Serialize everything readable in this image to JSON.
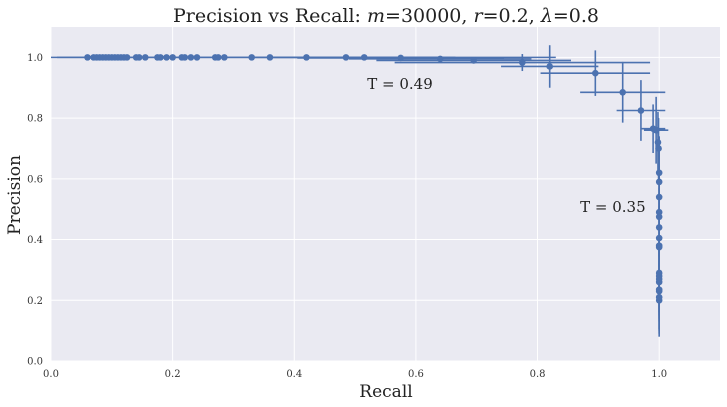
{
  "chart_data": {
    "type": "scatter",
    "title": "Precision vs Recall: m=30000, r=0.2, λ=0.8",
    "title_parts": {
      "prefix": "Precision vs Recall: ",
      "m_sym": "m",
      "m_val": "30000",
      "r_sym": "r",
      "r_val": "0.2",
      "lambda_sym": "λ",
      "lambda_val": "0.8"
    },
    "xlabel": "Recall",
    "ylabel": "Precision",
    "xlim": [
      0,
      1.1
    ],
    "ylim": [
      0,
      1.1
    ],
    "xticks": [
      "0.0",
      "0.2",
      "0.4",
      "0.6",
      "0.8",
      "1.0"
    ],
    "yticks": [
      "0.0",
      "0.2",
      "0.4",
      "0.6",
      "0.8",
      "1.0"
    ],
    "grid": true,
    "color": "#4c72b0",
    "background": "#eaeaf2",
    "annotations": [
      {
        "text": "T = 0.49",
        "x": 0.52,
        "y": 0.895
      },
      {
        "text": "T = 0.35",
        "x": 0.87,
        "y": 0.49
      }
    ],
    "points": [
      {
        "x": 0.06,
        "y": 1.0
      },
      {
        "x": 0.07,
        "y": 1.0
      },
      {
        "x": 0.075,
        "y": 1.0
      },
      {
        "x": 0.08,
        "y": 1.0
      },
      {
        "x": 0.085,
        "y": 1.0
      },
      {
        "x": 0.09,
        "y": 1.0
      },
      {
        "x": 0.095,
        "y": 1.0
      },
      {
        "x": 0.1,
        "y": 1.0
      },
      {
        "x": 0.105,
        "y": 1.0
      },
      {
        "x": 0.11,
        "y": 1.0
      },
      {
        "x": 0.115,
        "y": 1.0
      },
      {
        "x": 0.12,
        "y": 1.0
      },
      {
        "x": 0.125,
        "y": 1.0
      },
      {
        "x": 0.14,
        "y": 1.0
      },
      {
        "x": 0.145,
        "y": 1.0
      },
      {
        "x": 0.155,
        "y": 1.0
      },
      {
        "x": 0.175,
        "y": 1.0
      },
      {
        "x": 0.18,
        "y": 1.0
      },
      {
        "x": 0.19,
        "y": 1.0
      },
      {
        "x": 0.2,
        "y": 1.0
      },
      {
        "x": 0.215,
        "y": 1.0
      },
      {
        "x": 0.22,
        "y": 1.0
      },
      {
        "x": 0.23,
        "y": 1.0
      },
      {
        "x": 0.24,
        "y": 1.0
      },
      {
        "x": 0.27,
        "y": 1.0
      },
      {
        "x": 0.275,
        "y": 1.0
      },
      {
        "x": 0.285,
        "y": 1.0
      },
      {
        "x": 0.33,
        "y": 1.0
      },
      {
        "x": 0.36,
        "y": 1.0
      },
      {
        "x": 0.42,
        "y": 1.0,
        "xerr": 0.41
      },
      {
        "x": 0.485,
        "y": 1.0,
        "xerr": 0.16
      },
      {
        "x": 0.515,
        "y": 1.0,
        "xerr": 0.15
      },
      {
        "x": 0.575,
        "y": 0.998,
        "xerr": 0.17
      },
      {
        "x": 0.64,
        "y": 0.995,
        "xerr": 0.15
      },
      {
        "x": 0.695,
        "y": 0.99,
        "xerr": 0.16,
        "yerr": 0.01
      },
      {
        "x": 0.775,
        "y": 0.983,
        "xerr": 0.21,
        "yerr": 0.028
      },
      {
        "x": 0.82,
        "y": 0.97,
        "xerr": 0.08,
        "yerr": 0.07
      },
      {
        "x": 0.895,
        "y": 0.948,
        "xerr": 0.09,
        "yerr": 0.075
      },
      {
        "x": 0.94,
        "y": 0.885,
        "xerr": 0.07,
        "yerr": 0.1
      },
      {
        "x": 0.97,
        "y": 0.825,
        "xerr": 0.04,
        "yerr": 0.1
      },
      {
        "x": 0.99,
        "y": 0.765,
        "xerr": 0.02,
        "yerr": 0.08
      },
      {
        "x": 0.995,
        "y": 0.76,
        "xerr": 0.02,
        "yerr": 0.11
      },
      {
        "x": 0.998,
        "y": 0.72,
        "xerr": 0.005,
        "yerr": 0.1
      },
      {
        "x": 0.999,
        "y": 0.7,
        "yerr": 0.1
      },
      {
        "x": 1.0,
        "y": 0.62,
        "yerr": 0.12
      },
      {
        "x": 1.0,
        "y": 0.59,
        "yerr": 0.12
      },
      {
        "x": 1.0,
        "y": 0.54,
        "yerr": 0.12
      },
      {
        "x": 1.0,
        "y": 0.49,
        "yerr": 0.13
      },
      {
        "x": 1.0,
        "y": 0.475,
        "yerr": 0.13
      },
      {
        "x": 1.0,
        "y": 0.44,
        "yerr": 0.13
      },
      {
        "x": 1.0,
        "y": 0.405,
        "yerr": 0.13
      },
      {
        "x": 1.0,
        "y": 0.38,
        "yerr": 0.13
      },
      {
        "x": 1.0,
        "y": 0.375,
        "yerr": 0.13
      },
      {
        "x": 1.0,
        "y": 0.29,
        "yerr": 0.13
      },
      {
        "x": 1.0,
        "y": 0.28,
        "yerr": 0.13
      },
      {
        "x": 1.0,
        "y": 0.27,
        "yerr": 0.13
      },
      {
        "x": 1.0,
        "y": 0.26,
        "yerr": 0.13
      },
      {
        "x": 1.0,
        "y": 0.235,
        "yerr": 0.13
      },
      {
        "x": 1.0,
        "y": 0.23,
        "yerr": 0.13
      },
      {
        "x": 1.0,
        "y": 0.21,
        "yerr": 0.12
      },
      {
        "x": 1.0,
        "y": 0.2,
        "yerr": 0.12
      }
    ]
  }
}
